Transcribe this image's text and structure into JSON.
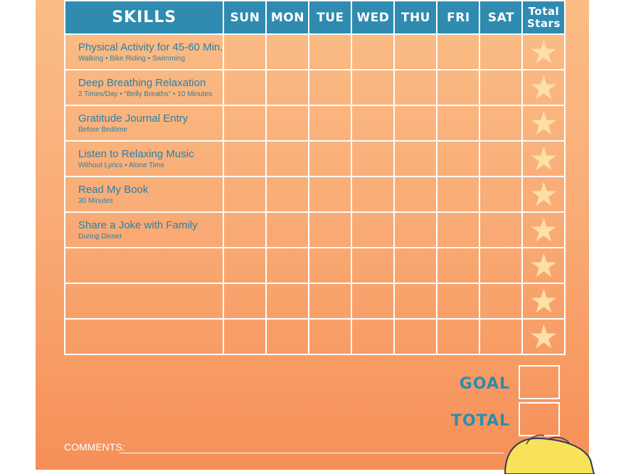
{
  "header": {
    "skills": "SKILLS",
    "days": [
      "SUN",
      "MON",
      "TUE",
      "WED",
      "THU",
      "FRI",
      "SAT"
    ],
    "total_stars_line1": "Total",
    "total_stars_line2": "Stars"
  },
  "skills": [
    {
      "title": "Physical Activity for 45-60 Min.",
      "subtitle": "Walking • Bike Riding • Swimming"
    },
    {
      "title": "Deep Breathing Relaxation",
      "subtitle": "2 Times/Day • “Belly Breaths” • 10 Minutes"
    },
    {
      "title": "Gratitude Journal Entry",
      "subtitle": "Before Bedtime"
    },
    {
      "title": "Listen to Relaxing Music",
      "subtitle": "Without Lyrics • Alone Time"
    },
    {
      "title": "Read My Book",
      "subtitle": "30 Minutes"
    },
    {
      "title": "Share a Joke with Family",
      "subtitle": "During Dinner"
    },
    {
      "title": "",
      "subtitle": ""
    },
    {
      "title": "",
      "subtitle": ""
    },
    {
      "title": "",
      "subtitle": ""
    }
  ],
  "goal_label": "GOAL",
  "total_label": "TOTAL",
  "comments_label": "COMMENTS:",
  "colors": {
    "header_blue": "#2f8bb0",
    "text_blue": "#2a80a6",
    "star": "#fce0a6",
    "background": "#f9ac76"
  }
}
